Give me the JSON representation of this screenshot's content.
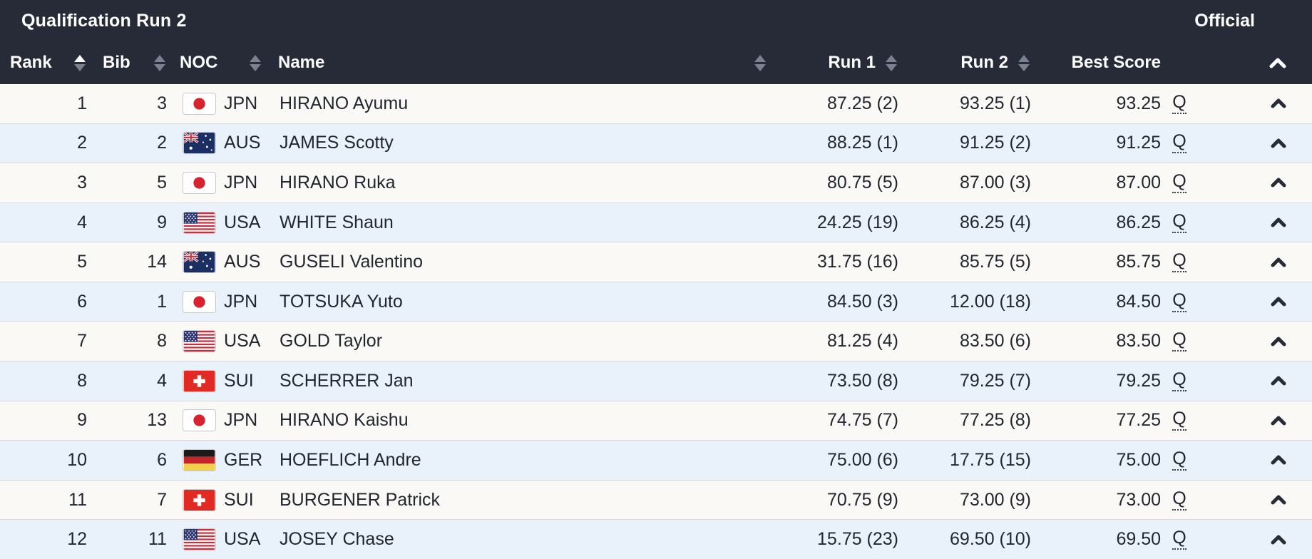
{
  "title_bar": {
    "title": "Qualification Run 2",
    "status": "Official"
  },
  "columns": {
    "rank": "Rank",
    "bib": "Bib",
    "noc": "NOC",
    "name": "Name",
    "run1": "Run 1",
    "run2": "Run 2",
    "best": "Best Score"
  },
  "sort": {
    "rank": "asc",
    "bib": "none",
    "noc": "none",
    "name": "none",
    "run1": "none",
    "run2": "none"
  },
  "colors": {
    "header_bg": "#262b37",
    "row_bg": "#faf9f6",
    "row_alt_bg": "#e9f2fa",
    "text": "#21262f",
    "sort_inactive": "#7b8190",
    "sort_active": "#ffffff",
    "separator": "#d8d8d6"
  },
  "icons": {
    "header_collapse": "chevron-up-icon",
    "row_collapse": "chevron-up-icon",
    "sort": "sort-arrows-icon"
  },
  "rows": [
    {
      "rank": "1",
      "bib": "3",
      "noc": "JPN",
      "name": "HIRANO Ayumu",
      "run1": "87.25 (2)",
      "run2": "93.25 (1)",
      "best": "93.25",
      "qualified": "Q"
    },
    {
      "rank": "2",
      "bib": "2",
      "noc": "AUS",
      "name": "JAMES Scotty",
      "run1": "88.25 (1)",
      "run2": "91.25 (2)",
      "best": "91.25",
      "qualified": "Q"
    },
    {
      "rank": "3",
      "bib": "5",
      "noc": "JPN",
      "name": "HIRANO Ruka",
      "run1": "80.75 (5)",
      "run2": "87.00 (3)",
      "best": "87.00",
      "qualified": "Q"
    },
    {
      "rank": "4",
      "bib": "9",
      "noc": "USA",
      "name": "WHITE Shaun",
      "run1": "24.25 (19)",
      "run2": "86.25 (4)",
      "best": "86.25",
      "qualified": "Q"
    },
    {
      "rank": "5",
      "bib": "14",
      "noc": "AUS",
      "name": "GUSELI Valentino",
      "run1": "31.75 (16)",
      "run2": "85.75 (5)",
      "best": "85.75",
      "qualified": "Q"
    },
    {
      "rank": "6",
      "bib": "1",
      "noc": "JPN",
      "name": "TOTSUKA Yuto",
      "run1": "84.50 (3)",
      "run2": "12.00 (18)",
      "best": "84.50",
      "qualified": "Q"
    },
    {
      "rank": "7",
      "bib": "8",
      "noc": "USA",
      "name": "GOLD Taylor",
      "run1": "81.25 (4)",
      "run2": "83.50 (6)",
      "best": "83.50",
      "qualified": "Q"
    },
    {
      "rank": "8",
      "bib": "4",
      "noc": "SUI",
      "name": "SCHERRER Jan",
      "run1": "73.50 (8)",
      "run2": "79.25 (7)",
      "best": "79.25",
      "qualified": "Q"
    },
    {
      "rank": "9",
      "bib": "13",
      "noc": "JPN",
      "name": "HIRANO Kaishu",
      "run1": "74.75 (7)",
      "run2": "77.25 (8)",
      "best": "77.25",
      "qualified": "Q"
    },
    {
      "rank": "10",
      "bib": "6",
      "noc": "GER",
      "name": "HOEFLICH Andre",
      "run1": "75.00 (6)",
      "run2": "17.75 (15)",
      "best": "75.00",
      "qualified": "Q"
    },
    {
      "rank": "11",
      "bib": "7",
      "noc": "SUI",
      "name": "BURGENER Patrick",
      "run1": "70.75 (9)",
      "run2": "73.00 (9)",
      "best": "73.00",
      "qualified": "Q"
    },
    {
      "rank": "12",
      "bib": "11",
      "noc": "USA",
      "name": "JOSEY Chase",
      "run1": "15.75 (23)",
      "run2": "69.50 (10)",
      "best": "69.50",
      "qualified": "Q"
    }
  ]
}
